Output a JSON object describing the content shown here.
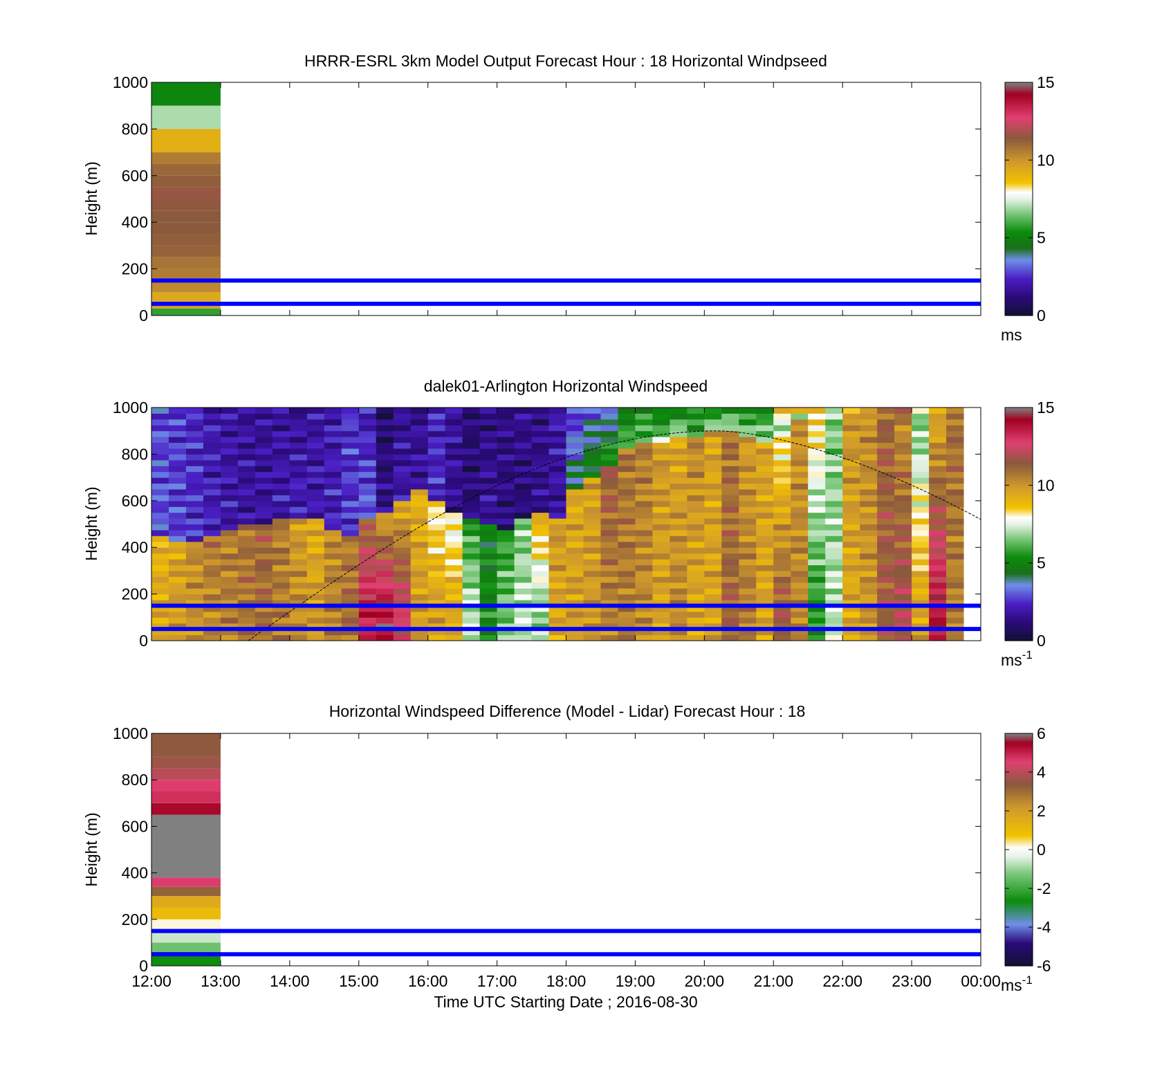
{
  "figure": {
    "x_tick_labels": [
      "12:00",
      "13:00",
      "14:00",
      "15:00",
      "16:00",
      "17:00",
      "18:00",
      "19:00",
      "20:00",
      "21:00",
      "22:00",
      "23:00",
      "00:00"
    ],
    "x_label": "Time UTC  Starting Date ; 2016-08-30"
  },
  "colors": {
    "reference_lines": "#0000ff",
    "terrain_curve": "#000000",
    "palette_speed": [
      "#111133",
      "#2b0a7a",
      "#4a1fc4",
      "#6f8fe8",
      "#1a6e1a",
      "#0b8c0b",
      "#7ec87e",
      "#e6f2e6",
      "#f3c300",
      "#d09a2c",
      "#8b5a3c",
      "#e04070",
      "#a00020",
      "#808080"
    ],
    "palette_difference": [
      "#111133",
      "#2b0a7a",
      "#6f8fe8",
      "#0b8c0b",
      "#7ec87e",
      "#e6f2e6",
      "#f3c300",
      "#d09a2c",
      "#8b5a3c",
      "#e04070",
      "#a00020",
      "#808080"
    ]
  },
  "chart_data": [
    {
      "type": "heatmap",
      "title": "HRRR-ESRL 3km Model Output   Forecast Hour : 18 Horizontal Windpseed",
      "xlabel": "",
      "ylabel": "Height (m)",
      "x_ticks_hours": [
        12,
        13,
        14,
        15,
        16,
        17,
        18,
        19,
        20,
        21,
        22,
        23,
        24
      ],
      "x_tick_labels": [],
      "y_ticks": [
        "0",
        "200",
        "400",
        "600",
        "800",
        "1000"
      ],
      "ylim": [
        0,
        1000
      ],
      "reference_lines_m": [
        50,
        150
      ],
      "colorbar": {
        "vmin": 0,
        "vmax": 15,
        "ticks": [
          "0",
          "5",
          "10",
          "15"
        ],
        "unit": "ms"
      },
      "columns": [
        {
          "start_hour": 12,
          "end_hour": 13,
          "cells": [
            {
              "y0": 0,
              "y1": 30,
              "v": 5.8
            },
            {
              "y0": 30,
              "y1": 60,
              "v": 9.6
            },
            {
              "y0": 60,
              "y1": 100,
              "v": 9.4
            },
            {
              "y0": 100,
              "y1": 150,
              "v": 10.3
            },
            {
              "y0": 150,
              "y1": 200,
              "v": 10.6
            },
            {
              "y0": 200,
              "y1": 250,
              "v": 10.8
            },
            {
              "y0": 250,
              "y1": 300,
              "v": 11.2
            },
            {
              "y0": 300,
              "y1": 350,
              "v": 11.3
            },
            {
              "y0": 350,
              "y1": 400,
              "v": 11.4
            },
            {
              "y0": 400,
              "y1": 450,
              "v": 11.4
            },
            {
              "y0": 450,
              "y1": 500,
              "v": 11.5
            },
            {
              "y0": 500,
              "y1": 550,
              "v": 11.6
            },
            {
              "y0": 550,
              "y1": 600,
              "v": 11.3
            },
            {
              "y0": 600,
              "y1": 650,
              "v": 11.1
            },
            {
              "y0": 650,
              "y1": 700,
              "v": 10.6
            },
            {
              "y0": 700,
              "y1": 800,
              "v": 9.2
            },
            {
              "y0": 800,
              "y1": 900,
              "v": 7.0
            },
            {
              "y0": 900,
              "y1": 1000,
              "v": 5.2
            }
          ]
        }
      ]
    },
    {
      "type": "heatmap",
      "title": "dalek01-Arlington  Horizontal Windspeed",
      "xlabel": "",
      "ylabel": "Height (m)",
      "x_ticks_hours": [
        12,
        13,
        14,
        15,
        16,
        17,
        18,
        19,
        20,
        21,
        22,
        23,
        24
      ],
      "x_tick_labels": [],
      "y_ticks": [
        "0",
        "200",
        "400",
        "600",
        "800",
        "1000"
      ],
      "ylim": [
        0,
        1000
      ],
      "reference_lines_m": [
        50,
        150
      ],
      "terrain_curve": {
        "x_hours": [
          13.4,
          20.2,
          24.0
        ],
        "peak_m": 900
      },
      "colorbar": {
        "vmin": 0,
        "vmax": 15,
        "ticks": [
          "0",
          "5",
          "10",
          "15"
        ],
        "unit": "ms",
        "unit_sup": "-1"
      },
      "column_width_hours": 0.25,
      "profiles": [
        {
          "from": 12.0,
          "low": 9.5,
          "mid": 9.0,
          "trans": 450,
          "upper": 3.0,
          "top": 2.8
        },
        {
          "from": 12.25,
          "low": 9.8,
          "mid": 9.5,
          "trans": 420,
          "upper": 2.8,
          "top": 2.6
        },
        {
          "from": 12.5,
          "low": 10.0,
          "mid": 10.2,
          "trans": 430,
          "upper": 2.5,
          "top": 2.4
        },
        {
          "from": 12.75,
          "low": 10.3,
          "mid": 10.8,
          "trans": 460,
          "upper": 2.2,
          "top": 2.0
        },
        {
          "from": 13.0,
          "low": 10.5,
          "mid": 10.5,
          "trans": 470,
          "upper": 2.0,
          "top": 1.8
        },
        {
          "from": 13.25,
          "low": 10.8,
          "mid": 10.8,
          "trans": 490,
          "upper": 1.8,
          "top": 1.7
        },
        {
          "from": 13.5,
          "low": 11.0,
          "mid": 11.2,
          "trans": 500,
          "upper": 1.8,
          "top": 1.6
        },
        {
          "from": 13.75,
          "low": 10.6,
          "mid": 10.6,
          "trans": 520,
          "upper": 2.0,
          "top": 1.7
        },
        {
          "from": 14.0,
          "low": 10.2,
          "mid": 9.8,
          "trans": 520,
          "upper": 2.2,
          "top": 1.6
        },
        {
          "from": 14.25,
          "low": 9.8,
          "mid": 9.2,
          "trans": 520,
          "upper": 2.0,
          "top": 1.8
        },
        {
          "from": 14.5,
          "low": 10.5,
          "mid": 10.2,
          "trans": 480,
          "upper": 2.2,
          "top": 2.0
        },
        {
          "from": 14.75,
          "low": 11.0,
          "mid": 10.5,
          "trans": 460,
          "upper": 2.6,
          "top": 2.5
        },
        {
          "from": 15.0,
          "low": 13.5,
          "mid": 11.0,
          "trans": 520,
          "upper": 3.2,
          "top": 2.0
        },
        {
          "from": 15.25,
          "low": 14.0,
          "mid": 9.5,
          "trans": 560,
          "upper": 1.5,
          "top": 0.8
        },
        {
          "from": 15.5,
          "low": 12.5,
          "mid": 9.4,
          "trans": 600,
          "upper": 2.0,
          "top": 1.5
        },
        {
          "from": 15.75,
          "low": 9.8,
          "mid": 9.2,
          "trans": 640,
          "upper": 1.8,
          "top": 1.5
        },
        {
          "from": 16.0,
          "low": 9.6,
          "mid": 8.0,
          "trans": 600,
          "upper": 2.5,
          "top": 2.2
        },
        {
          "from": 16.25,
          "low": 9.4,
          "mid": 7.5,
          "trans": 560,
          "upper": 1.5,
          "top": 1.8
        },
        {
          "from": 16.5,
          "low": 7.2,
          "mid": 5.5,
          "trans": 520,
          "upper": 1.2,
          "top": 1.0
        },
        {
          "from": 16.75,
          "low": 5.2,
          "mid": 4.8,
          "trans": 500,
          "upper": 1.8,
          "top": 1.2
        },
        {
          "from": 17.0,
          "low": 6.5,
          "mid": 5.5,
          "trans": 480,
          "upper": 1.2,
          "top": 1.4
        },
        {
          "from": 17.25,
          "low": 7.2,
          "mid": 6.5,
          "trans": 520,
          "upper": 1.0,
          "top": 1.6
        },
        {
          "from": 17.5,
          "low": 6.8,
          "mid": 9.2,
          "trans": 540,
          "upper": 1.5,
          "top": 1.4
        },
        {
          "from": 17.75,
          "low": 9.5,
          "mid": 10.0,
          "trans": 520,
          "upper": 1.6,
          "top": 2.0
        },
        {
          "from": 18.0,
          "low": 9.8,
          "mid": 9.4,
          "trans": 640,
          "upper": 4.5,
          "top": 2.4
        },
        {
          "from": 18.25,
          "low": 10.0,
          "mid": 9.6,
          "trans": 700,
          "upper": 5.0,
          "top": 3.2
        },
        {
          "from": 18.5,
          "low": 10.4,
          "mid": 11.5,
          "trans": 760,
          "upper": 5.8,
          "top": 3.0
        },
        {
          "from": 18.75,
          "low": 10.6,
          "mid": 10.8,
          "trans": 820,
          "upper": 6.2,
          "top": 4.8
        },
        {
          "from": 19.0,
          "low": 10.2,
          "mid": 10.6,
          "trans": 840,
          "upper": 6.5,
          "top": 5.2
        },
        {
          "from": 19.25,
          "low": 9.6,
          "mid": 10.0,
          "trans": 860,
          "upper": 6.8,
          "top": 4.5
        },
        {
          "from": 19.5,
          "low": 10.4,
          "mid": 9.4,
          "trans": 880,
          "upper": 7.0,
          "top": 4.8
        },
        {
          "from": 19.75,
          "low": 9.4,
          "mid": 10.4,
          "trans": 880,
          "upper": 6.0,
          "top": 5.0
        },
        {
          "from": 20.0,
          "low": 9.6,
          "mid": 9.6,
          "trans": 900,
          "upper": 7.4,
          "top": 5.2
        },
        {
          "from": 20.25,
          "low": 11.2,
          "mid": 10.8,
          "trans": 900,
          "upper": 7.0,
          "top": 5.4
        },
        {
          "from": 20.5,
          "low": 10.6,
          "mid": 9.8,
          "trans": 880,
          "upper": 7.0,
          "top": 5.0
        },
        {
          "from": 20.75,
          "low": 9.6,
          "mid": 9.6,
          "trans": 860,
          "upper": 6.8,
          "top": 5.2
        },
        {
          "from": 21.0,
          "low": 11.5,
          "mid": 7.8,
          "trans": 900,
          "upper": 6.5,
          "top": 9.0
        },
        {
          "from": 21.25,
          "low": 10.4,
          "mid": 10.0,
          "trans": 950,
          "upper": 7.0,
          "top": 9.4
        },
        {
          "from": 21.5,
          "low": 5.5,
          "mid": 8.5,
          "trans": 950,
          "upper": 7.2,
          "top": 10.0
        },
        {
          "from": 21.75,
          "low": 7.2,
          "mid": 6.5,
          "trans": 950,
          "upper": 7.5,
          "top": 6.8
        },
        {
          "from": 22.0,
          "low": 9.4,
          "mid": 10.0,
          "trans": 950,
          "upper": 9.5,
          "top": 9.4
        },
        {
          "from": 22.25,
          "low": 10.0,
          "mid": 10.2,
          "trans": 950,
          "upper": 9.6,
          "top": 9.6
        },
        {
          "from": 22.5,
          "low": 11.5,
          "mid": 11.2,
          "trans": 950,
          "upper": 10.8,
          "top": 11.0
        },
        {
          "from": 22.75,
          "low": 12.0,
          "mid": 10.2,
          "trans": 950,
          "upper": 11.0,
          "top": 11.2
        },
        {
          "from": 23.0,
          "low": 9.6,
          "mid": 6.5,
          "trans": 950,
          "upper": 6.8,
          "top": 8.0
        },
        {
          "from": 23.25,
          "low": 13.8,
          "mid": 9.4,
          "trans": 950,
          "upper": 9.6,
          "top": 9.6
        },
        {
          "from": 23.5,
          "low": 10.5,
          "mid": 11.0,
          "trans": 950,
          "upper": 10.5,
          "top": 10.5
        }
      ]
    },
    {
      "type": "heatmap",
      "title": "Horizontal Windspeed Difference (Model - Lidar) Forecast Hour : 18",
      "xlabel": "Time UTC  Starting Date ; 2016-08-30",
      "ylabel": "Height (m)",
      "x_ticks_hours": [
        12,
        13,
        14,
        15,
        16,
        17,
        18,
        19,
        20,
        21,
        22,
        23,
        24
      ],
      "x_tick_labels": [
        "12:00",
        "13:00",
        "14:00",
        "15:00",
        "16:00",
        "17:00",
        "18:00",
        "19:00",
        "20:00",
        "21:00",
        "22:00",
        "23:00",
        "00:00"
      ],
      "y_ticks": [
        "0",
        "200",
        "400",
        "600",
        "800",
        "1000"
      ],
      "ylim": [
        0,
        1000
      ],
      "reference_lines_m": [
        50,
        150
      ],
      "colorbar": {
        "vmin": -6,
        "vmax": 6,
        "ticks": [
          "-6",
          "-4",
          "-2",
          "0",
          "2",
          "4",
          "6"
        ],
        "unit": "ms",
        "unit_sup": "-1"
      },
      "columns": [
        {
          "start_hour": 12,
          "end_hour": 13,
          "cells": [
            {
              "y0": 0,
              "y1": 60,
              "v": -2.6
            },
            {
              "y0": 60,
              "y1": 100,
              "v": -1.4
            },
            {
              "y0": 100,
              "y1": 150,
              "v": -0.6
            },
            {
              "y0": 150,
              "y1": 200,
              "v": 0.2
            },
            {
              "y0": 200,
              "y1": 250,
              "v": 1.0
            },
            {
              "y0": 250,
              "y1": 300,
              "v": 1.6
            },
            {
              "y0": 300,
              "y1": 340,
              "v": 3.2
            },
            {
              "y0": 340,
              "y1": 380,
              "v": 4.6
            },
            {
              "y0": 380,
              "y1": 650,
              "v": 6.0
            },
            {
              "y0": 650,
              "y1": 700,
              "v": 5.4
            },
            {
              "y0": 700,
              "y1": 750,
              "v": 4.8
            },
            {
              "y0": 750,
              "y1": 800,
              "v": 4.6
            },
            {
              "y0": 800,
              "y1": 850,
              "v": 4.0
            },
            {
              "y0": 850,
              "y1": 900,
              "v": 3.6
            },
            {
              "y0": 900,
              "y1": 1000,
              "v": 3.4
            }
          ]
        }
      ]
    }
  ]
}
